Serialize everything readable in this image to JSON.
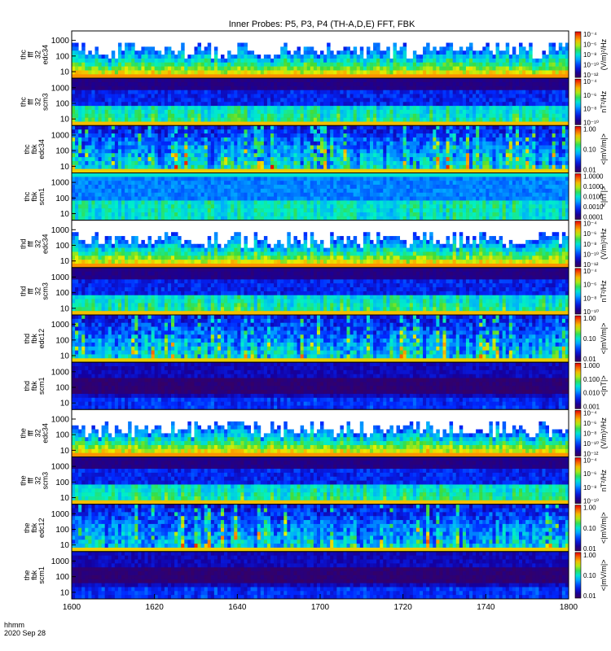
{
  "chart_data": {
    "type": "heatmap",
    "title": "Inner Probes: P5, P3, P4 (TH-A,D,E) FFT, FBK",
    "x_ticks": [
      "1600",
      "1620",
      "1640",
      "1700",
      "1720",
      "1740",
      "1800"
    ],
    "x_footer": [
      "hhmm",
      "2020 Sep 28"
    ],
    "panels": [
      {
        "label": [
          "thc",
          "fff",
          "32",
          "edc34"
        ],
        "y_ticks": [
          "1000",
          "100",
          "10"
        ],
        "z_unit": "(V/m)²/Hz",
        "z_ticks": [
          "10⁻⁴",
          "10⁻⁶",
          "10⁻⁸",
          "10⁻¹⁰",
          "10⁻¹²"
        ],
        "kind": "eff"
      },
      {
        "label": [
          "thc",
          "fff",
          "32",
          "scm3"
        ],
        "y_ticks": [
          "1000",
          "100",
          "10"
        ],
        "z_unit": "nT²/Hz",
        "z_ticks": [
          "10⁻⁴",
          "10⁻⁶",
          "10⁻⁸",
          "10⁻¹⁰"
        ],
        "kind": "scf"
      },
      {
        "label": [
          "thc",
          "fbk",
          "edc34"
        ],
        "y_ticks": [
          "1000",
          "100",
          "10"
        ],
        "z_unit": "<|mV/m|>",
        "z_ticks": [
          "1.00",
          "0.10",
          "0.01"
        ],
        "kind": "efb"
      },
      {
        "label": [
          "thc",
          "fbk",
          "scm1"
        ],
        "y_ticks": [
          "1000",
          "100",
          "10"
        ],
        "z_unit": "<|nT|>",
        "z_ticks": [
          "1.0000",
          "0.1000",
          "0.0100",
          "0.0010",
          "0.0001"
        ],
        "kind": "sfb"
      },
      {
        "label": [
          "thd",
          "fff",
          "32",
          "edc34"
        ],
        "y_ticks": [
          "1000",
          "100",
          "10"
        ],
        "z_unit": "(V/m)²/Hz",
        "z_ticks": [
          "10⁻⁴",
          "10⁻⁶",
          "10⁻⁸",
          "10⁻¹⁰",
          "10⁻¹²"
        ],
        "kind": "eff"
      },
      {
        "label": [
          "thd",
          "fff",
          "32",
          "scm3"
        ],
        "y_ticks": [
          "1000",
          "100",
          "10"
        ],
        "z_unit": "nT²/Hz",
        "z_ticks": [
          "10⁻⁴",
          "10⁻⁶",
          "10⁻⁸",
          "10⁻¹⁰"
        ],
        "kind": "scf"
      },
      {
        "label": [
          "thd",
          "fbk",
          "edc12"
        ],
        "y_ticks": [
          "1000",
          "100",
          "10"
        ],
        "z_unit": "<|mV/m|>",
        "z_ticks": [
          "1.00",
          "0.10",
          "0.01"
        ],
        "kind": "efb"
      },
      {
        "label": [
          "thd",
          "fbk",
          "scm1"
        ],
        "y_ticks": [
          "1000",
          "100",
          "10"
        ],
        "z_unit": "<|nT|>",
        "z_ticks": [
          "1.000",
          "0.100",
          "0.010",
          "0.001"
        ],
        "kind": "sfb2"
      },
      {
        "label": [
          "the",
          "fff",
          "32",
          "edc34"
        ],
        "y_ticks": [
          "1000",
          "100",
          "10"
        ],
        "z_unit": "(V/m)²/Hz",
        "z_ticks": [
          "10⁻⁴",
          "10⁻⁶",
          "10⁻⁸",
          "10⁻¹⁰",
          "10⁻¹²"
        ],
        "kind": "eff"
      },
      {
        "label": [
          "the",
          "fff",
          "32",
          "scm3"
        ],
        "y_ticks": [
          "1000",
          "100",
          "10"
        ],
        "z_unit": "nT²/Hz",
        "z_ticks": [
          "10⁻⁴",
          "10⁻⁶",
          "10⁻⁸",
          "10⁻¹⁰"
        ],
        "kind": "scf"
      },
      {
        "label": [
          "the",
          "fbk",
          "edc12"
        ],
        "y_ticks": [
          "1000",
          "100",
          "10"
        ],
        "z_unit": "<|mV/m|>",
        "z_ticks": [
          "1.00",
          "0.10",
          "0.01"
        ],
        "kind": "efb"
      },
      {
        "label": [
          "the",
          "fbk",
          "scm1"
        ],
        "y_ticks": [
          "1000",
          "100",
          "10"
        ],
        "z_unit": "<|mV/m|>",
        "z_ticks": [
          "1.00",
          "0.10",
          "0.01"
        ],
        "kind": "sfb2"
      }
    ]
  }
}
